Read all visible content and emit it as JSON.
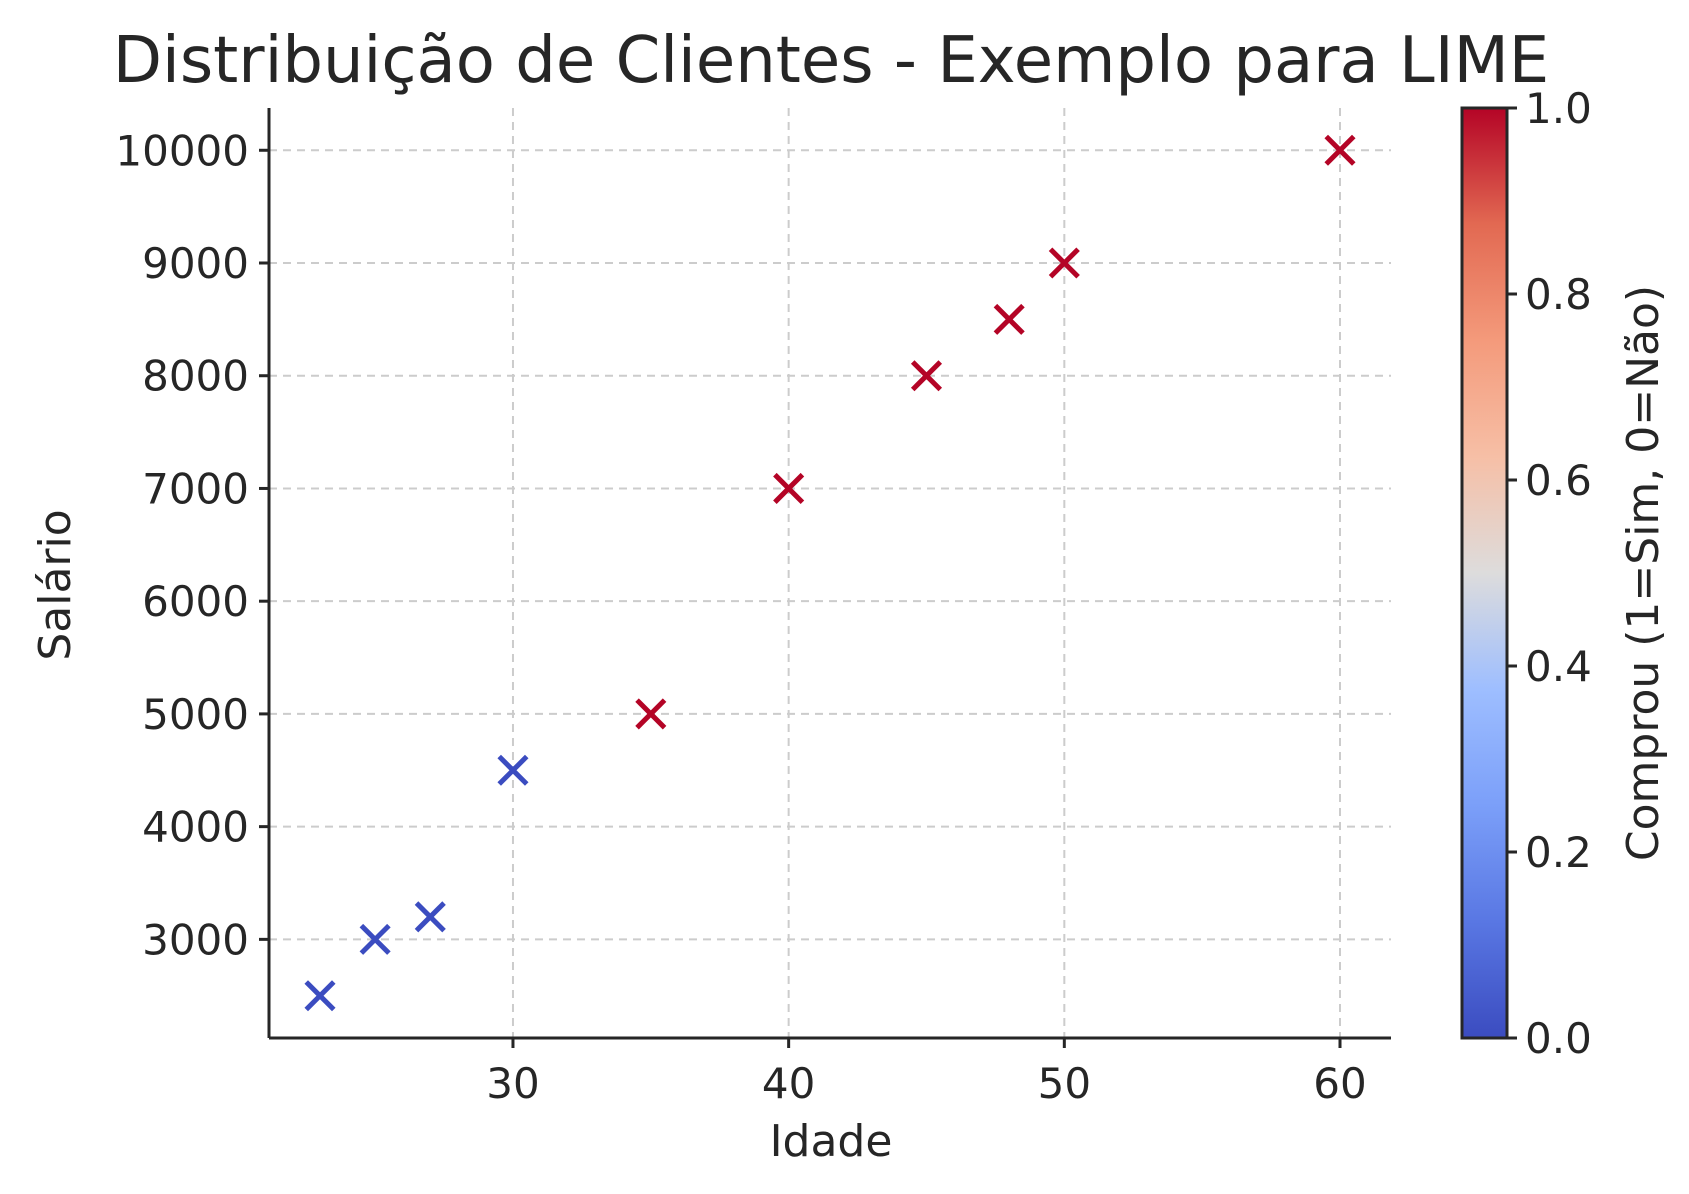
{
  "chart_data": {
    "type": "scatter",
    "title": "Distribuição de Clientes - Exemplo para LIME",
    "xlabel": "Idade",
    "ylabel": "Salário",
    "xlim": [
      21.15,
      61.85
    ],
    "ylim": [
      2125,
      10375
    ],
    "xticks": [
      30,
      40,
      50,
      60
    ],
    "yticks": [
      3000,
      4000,
      5000,
      6000,
      7000,
      8000,
      9000,
      10000
    ],
    "grid": true,
    "marker": "x",
    "colormap": "coolwarm",
    "colorbar": {
      "label": "Comprou (1=Sim, 0=Não)",
      "range": [
        0,
        1
      ],
      "ticks": [
        "0.0",
        "0.2",
        "0.4",
        "0.6",
        "0.8",
        "1.0"
      ]
    },
    "colors": {
      "class_0": "#3b4cc0",
      "class_1": "#b40426"
    },
    "points": [
      {
        "x": 23,
        "y": 2500,
        "c": 0
      },
      {
        "x": 25,
        "y": 3000,
        "c": 0
      },
      {
        "x": 27,
        "y": 3200,
        "c": 0
      },
      {
        "x": 30,
        "y": 4500,
        "c": 0
      },
      {
        "x": 35,
        "y": 5000,
        "c": 1
      },
      {
        "x": 40,
        "y": 7000,
        "c": 1
      },
      {
        "x": 45,
        "y": 8000,
        "c": 1
      },
      {
        "x": 48,
        "y": 8500,
        "c": 1
      },
      {
        "x": 50,
        "y": 9000,
        "c": 1
      },
      {
        "x": 60,
        "y": 10000,
        "c": 1
      }
    ]
  }
}
